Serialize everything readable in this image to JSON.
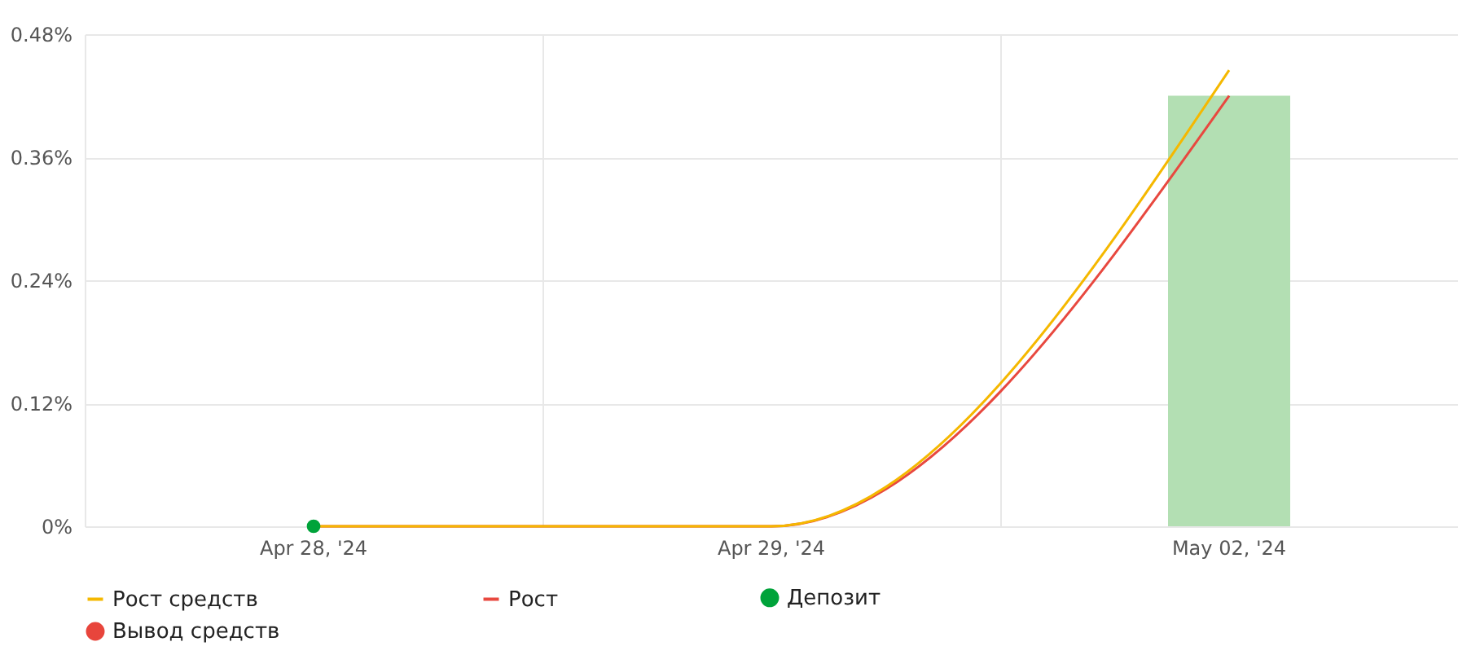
{
  "chart_data": {
    "type": "line",
    "categories": [
      "Apr 28, '24",
      "Apr 29, '24",
      "May 02, '24"
    ],
    "series": [
      {
        "name": "Рост средств",
        "color": "#f5b800",
        "values": [
          0,
          0,
          0.445
        ]
      },
      {
        "name": "Рост",
        "color": "#e8483f",
        "values": [
          0,
          0,
          0.42
        ]
      },
      {
        "name": "Депозит",
        "type": "scatter",
        "color": "#00a33a",
        "values": [
          0,
          null,
          null
        ]
      },
      {
        "name": "Вывод средств",
        "type": "scatter",
        "color": "#e8453c",
        "values": [
          null,
          null,
          null
        ]
      },
      {
        "type": "bar",
        "color": "#b3dfb3",
        "values": [
          null,
          null,
          0.42
        ]
      }
    ],
    "ylim": [
      0,
      0.48
    ],
    "yticks": [
      {
        "value": 0,
        "label": "0%"
      },
      {
        "value": 0.12,
        "label": "0.12%"
      },
      {
        "value": 0.24,
        "label": "0.24%"
      },
      {
        "value": 0.36,
        "label": "0.36%"
      },
      {
        "value": 0.48,
        "label": "0.48%"
      }
    ],
    "grid": true,
    "legend": "bottom"
  }
}
